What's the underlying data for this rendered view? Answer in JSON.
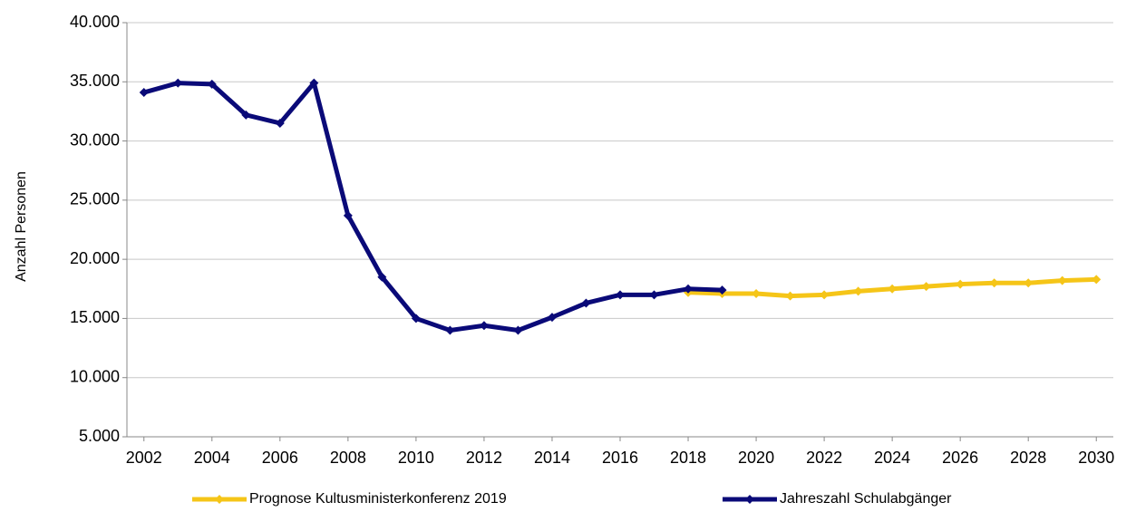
{
  "chart_data": {
    "type": "line",
    "y_label": "Anzahl Personen",
    "x": [
      2002,
      2003,
      2004,
      2005,
      2006,
      2007,
      2008,
      2009,
      2010,
      2011,
      2012,
      2013,
      2014,
      2015,
      2016,
      2017,
      2018,
      2019,
      2020,
      2021,
      2022,
      2023,
      2024,
      2025,
      2026,
      2027,
      2028,
      2029,
      2030
    ],
    "series": [
      {
        "name": "Prognose Kultusministerkonferenz 2019",
        "color": "#f5c518",
        "values": [
          null,
          null,
          null,
          null,
          null,
          null,
          null,
          null,
          null,
          null,
          null,
          null,
          null,
          null,
          null,
          null,
          17200,
          17100,
          17100,
          16900,
          17000,
          17300,
          17500,
          17700,
          17900,
          18000,
          18000,
          18200,
          18300
        ]
      },
      {
        "name": "Jahreszahl Schulabgänger",
        "color": "#0a0a78",
        "values": [
          34100,
          34900,
          34800,
          32200,
          31500,
          34900,
          23700,
          18500,
          15000,
          14000,
          14400,
          14000,
          15100,
          16300,
          17000,
          17000,
          17500,
          17400,
          null,
          null,
          null,
          null,
          null,
          null,
          null,
          null,
          null,
          null,
          null
        ]
      }
    ],
    "xlim": [
      2001.5,
      2030.5
    ],
    "xticks": [
      2002,
      2004,
      2006,
      2008,
      2010,
      2012,
      2014,
      2016,
      2018,
      2020,
      2022,
      2024,
      2026,
      2028,
      2030
    ],
    "ylim": [
      5000,
      40000
    ],
    "yticks": [
      {
        "value": 5000,
        "label": "5.000"
      },
      {
        "value": 10000,
        "label": "10.000"
      },
      {
        "value": 15000,
        "label": "15.000"
      },
      {
        "value": 20000,
        "label": "20.000"
      },
      {
        "value": 25000,
        "label": "25.000"
      },
      {
        "value": 30000,
        "label": "30.000"
      },
      {
        "value": 35000,
        "label": "35.000"
      },
      {
        "value": 40000,
        "label": "40.000"
      }
    ],
    "grid": true
  }
}
